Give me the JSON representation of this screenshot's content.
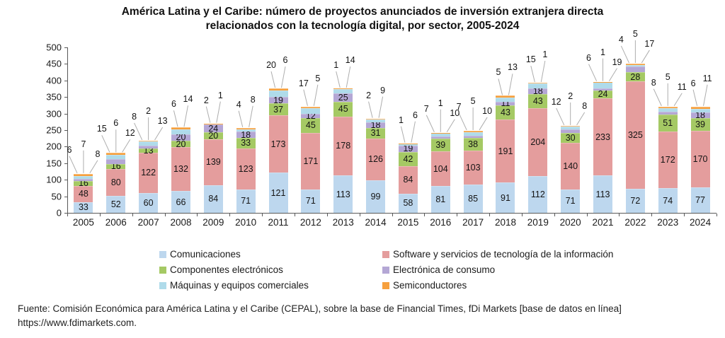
{
  "title": {
    "line1": "América Latina y el Caribe: número de proyectos anunciados de inversión extranjera directa",
    "line2": "relacionados con la tecnología digital, por sector, 2005-2024"
  },
  "colors": {
    "com": "#BDD7EE",
    "sw": "#E49D9D",
    "comp": "#A5C964",
    "cons": "#B4A7D5",
    "maq": "#AFDBEA",
    "semi": "#F6A03E",
    "axis": "#595959",
    "leader": "#ADADAD"
  },
  "y_axis": {
    "min": 0,
    "max": 500,
    "step": 50,
    "tick_labels": [
      "0",
      "50",
      "100",
      "150",
      "200",
      "250",
      "300",
      "350",
      "400",
      "450",
      "500"
    ]
  },
  "legend": {
    "col1": [
      {
        "key": "com",
        "label": "Comunicaciones"
      },
      {
        "key": "comp",
        "label": "Componentes electrónicos"
      },
      {
        "key": "maq",
        "label": "Máquinas y equipos comerciales"
      }
    ],
    "col2": [
      {
        "key": "sw",
        "label": "Software y servicios de tecnología de la información"
      },
      {
        "key": "cons",
        "label": "Electrónica de consumo"
      },
      {
        "key": "semi",
        "label": "Semiconductores"
      }
    ]
  },
  "source": {
    "line1": "Fuente: Comisión Económica para América Latina y el Caribe (CEPAL), sobre la base de Financial Times, fDi Markets [base de datos en línea]",
    "line2": "https://www.fdimarkets.com."
  },
  "chart_data": {
    "type": "bar",
    "stacked": true,
    "title": "América Latina y el Caribe: número de proyectos anunciados de inversión extranjera directa relacionados con la tecnología digital, por sector, 2005-2024",
    "xlabel": "",
    "ylabel": "",
    "ylim": [
      0,
      500
    ],
    "grid": false,
    "legend_position": "bottom",
    "categories": [
      "2005",
      "2006",
      "2007",
      "2008",
      "2009",
      "2010",
      "2011",
      "2012",
      "2013",
      "2014",
      "2015",
      "2016",
      "2017",
      "2018",
      "2019",
      "2020",
      "2021",
      "2022",
      "2023",
      "2024"
    ],
    "series": [
      {
        "key": "com",
        "name": "Comunicaciones",
        "color": "#BDD7EE",
        "values": [
          33,
          52,
          60,
          66,
          84,
          71,
          121,
          71,
          113,
          99,
          58,
          81,
          85,
          91,
          112,
          71,
          113,
          72,
          74,
          77
        ]
      },
      {
        "key": "sw",
        "name": "Software y servicios de tecnología de la información",
        "color": "#E49D9D",
        "values": [
          48,
          80,
          122,
          132,
          139,
          123,
          173,
          171,
          178,
          126,
          84,
          104,
          103,
          191,
          204,
          140,
          233,
          325,
          172,
          170
        ]
      },
      {
        "key": "comp",
        "name": "Componentes electrónicos",
        "color": "#A5C964",
        "values": [
          16,
          16,
          13,
          20,
          20,
          33,
          37,
          45,
          45,
          31,
          42,
          39,
          38,
          43,
          43,
          30,
          24,
          28,
          51,
          39
        ]
      },
      {
        "key": "cons",
        "name": "Electrónica de consumo",
        "color": "#B4A7D5",
        "values": [
          6,
          15,
          8,
          20,
          24,
          18,
          19,
          12,
          25,
          18,
          19,
          7,
          7,
          11,
          18,
          12,
          6,
          17,
          8,
          18
        ]
      },
      {
        "key": "maq",
        "name": "Máquinas y equipos comerciales",
        "color": "#AFDBEA",
        "values": [
          8,
          12,
          13,
          14,
          2,
          8,
          20,
          17,
          14,
          9,
          6,
          10,
          10,
          13,
          15,
          8,
          19,
          5,
          11,
          11
        ]
      },
      {
        "key": "semi",
        "name": "Semiconductores",
        "color": "#F6A03E",
        "values": [
          7,
          6,
          2,
          6,
          1,
          4,
          6,
          5,
          1,
          2,
          1,
          1,
          5,
          5,
          1,
          2,
          1,
          4,
          5,
          6
        ]
      }
    ],
    "totals": [
      118,
      181,
      218,
      258,
      270,
      257,
      376,
      321,
      376,
      285,
      210,
      242,
      248,
      354,
      393,
      263,
      396,
      451,
      321,
      321
    ],
    "labels": {
      "inside_by_year": {
        "2005": [
          "com",
          "sw",
          "comp"
        ],
        "2006": [
          "com",
          "sw",
          "comp"
        ],
        "2007": [
          "com",
          "sw",
          "comp"
        ],
        "2008": [
          "com",
          "sw",
          "comp",
          "cons"
        ],
        "2009": [
          "com",
          "sw",
          "comp",
          "cons"
        ],
        "2010": [
          "com",
          "sw",
          "comp",
          "cons"
        ],
        "2011": [
          "com",
          "sw",
          "comp",
          "cons"
        ],
        "2012": [
          "com",
          "sw",
          "comp",
          "cons"
        ],
        "2013": [
          "com",
          "sw",
          "comp",
          "cons"
        ],
        "2014": [
          "com",
          "sw",
          "comp",
          "cons"
        ],
        "2015": [
          "com",
          "sw",
          "comp",
          "cons"
        ],
        "2016": [
          "com",
          "sw",
          "comp"
        ],
        "2017": [
          "com",
          "sw",
          "comp"
        ],
        "2018": [
          "com",
          "sw",
          "comp",
          "cons"
        ],
        "2019": [
          "com",
          "sw",
          "comp",
          "cons"
        ],
        "2020": [
          "com",
          "sw",
          "comp"
        ],
        "2021": [
          "com",
          "sw",
          "comp"
        ],
        "2022": [
          "com",
          "sw",
          "comp"
        ],
        "2023": [
          "com",
          "sw",
          "comp"
        ],
        "2024": [
          "com",
          "sw",
          "comp",
          "cons"
        ]
      },
      "callouts_by_year": {
        "2005": [
          "6",
          "7",
          "8"
        ],
        "2006": [
          "15",
          "6",
          "12"
        ],
        "2007": [
          "8",
          "2",
          "13"
        ],
        "2008": [
          "6",
          "14"
        ],
        "2009": [
          "2",
          "1"
        ],
        "2010": [
          "4",
          "8"
        ],
        "2011": [
          "20",
          "6"
        ],
        "2012": [
          "17",
          "5"
        ],
        "2013": [
          "1",
          "14"
        ],
        "2014": [
          "2",
          "9"
        ],
        "2015": [
          "1",
          "6"
        ],
        "2016": [
          "7",
          "1",
          "10"
        ],
        "2017": [
          "7",
          "5",
          "10"
        ],
        "2018": [
          "5",
          "13"
        ],
        "2019": [
          "15",
          "1"
        ],
        "2020": [
          "12",
          "2",
          "8"
        ],
        "2021": [
          "6",
          "1",
          "19"
        ],
        "2022": [
          "4",
          "5",
          "17"
        ],
        "2023": [
          "8",
          "5",
          "11"
        ],
        "2024": [
          "6",
          "11"
        ]
      }
    }
  }
}
